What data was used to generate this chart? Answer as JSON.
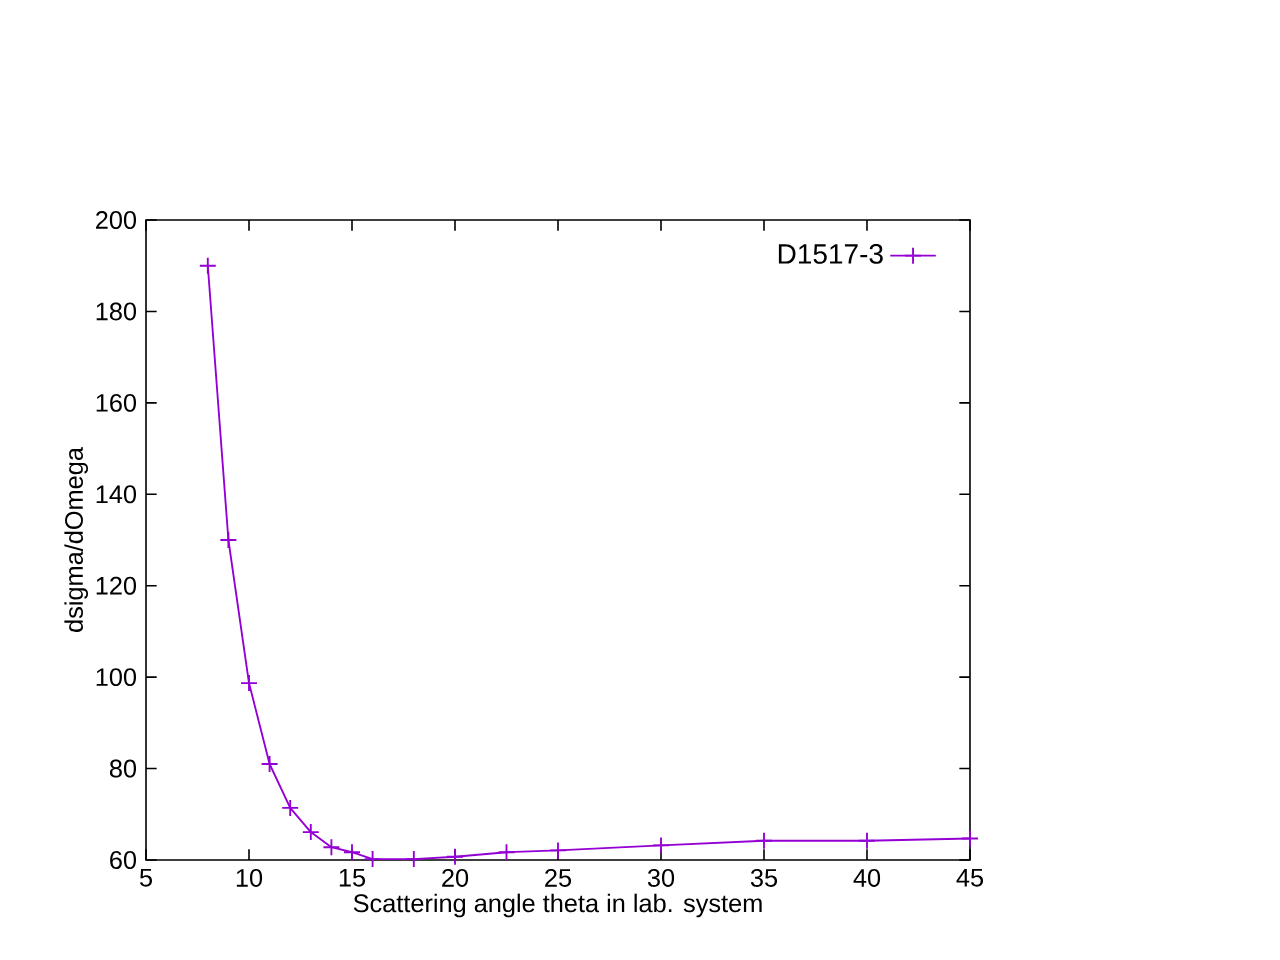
{
  "chart_data": {
    "type": "line",
    "xlabel": "Scattering angle theta in lab. system",
    "ylabel": "dsigma/dOmega",
    "x": [
      8,
      9,
      10,
      11,
      12,
      13,
      14,
      15,
      16,
      18,
      20,
      22.5,
      25,
      30,
      35,
      40,
      45
    ],
    "series": [
      {
        "name": "D1517-3",
        "color": "#9400d3",
        "values": [
          190,
          130,
          98.7,
          81.0,
          71.4,
          66.1,
          62.8,
          61.7,
          60.2,
          60.2,
          60.7,
          61.7,
          62.1,
          63.2,
          64.2,
          64.2,
          64.7
        ]
      }
    ],
    "xlim": [
      5,
      45
    ],
    "ylim": [
      60,
      200
    ],
    "xticks": [
      5,
      10,
      15,
      20,
      25,
      30,
      35,
      40,
      45
    ],
    "yticks": [
      60,
      80,
      100,
      120,
      140,
      160,
      180,
      200
    ],
    "grid": false,
    "legend": "top right",
    "marker": "cross",
    "line_style": "solid"
  }
}
